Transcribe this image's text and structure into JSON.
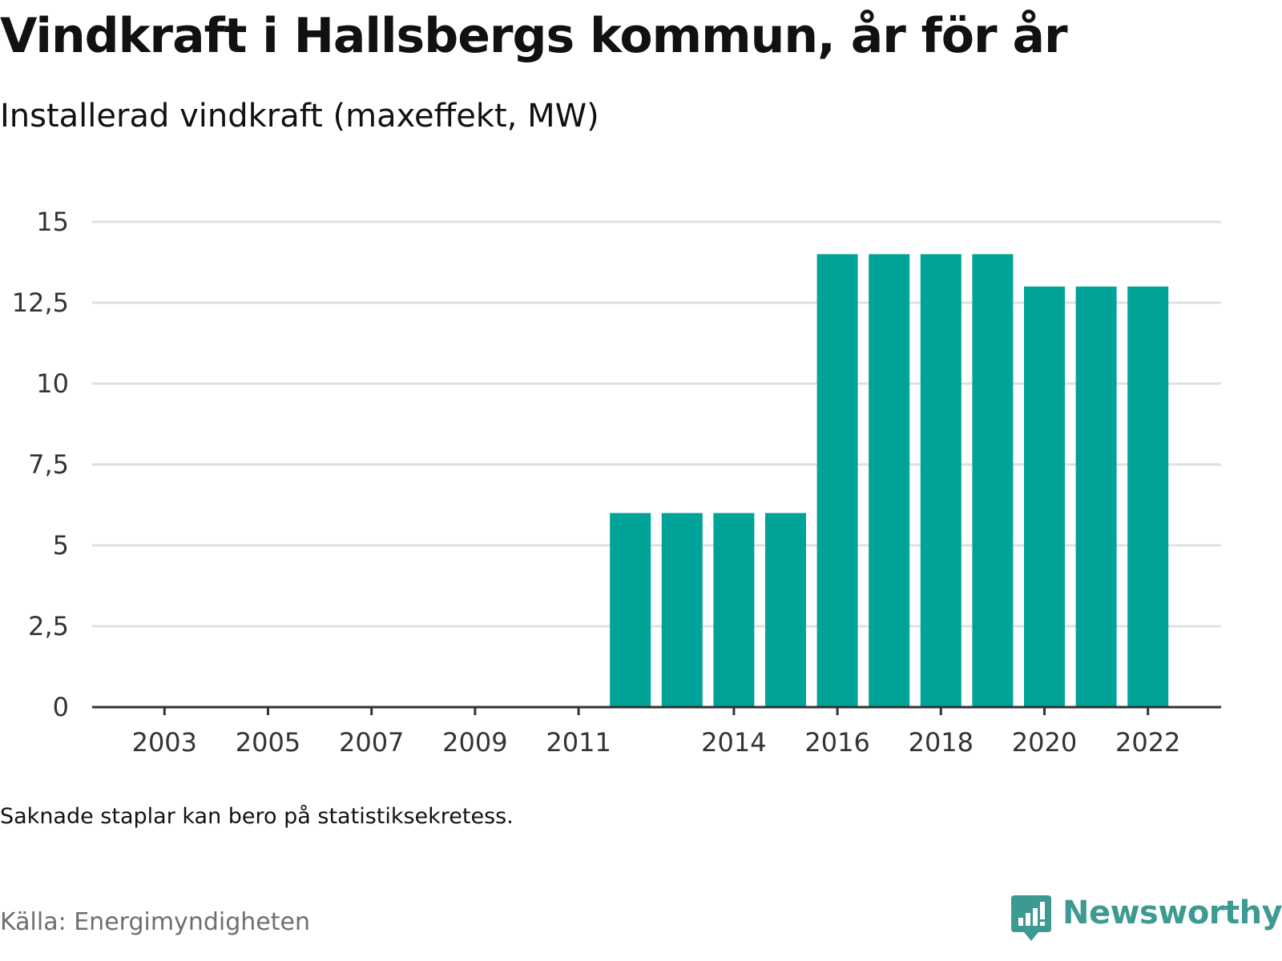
{
  "title": "Vindkraft i Hallsbergs kommun, år för år",
  "subtitle": "Installerad vindkraft (maxeffekt, MW)",
  "note": "Saknade staplar kan bero på statistiksekretess.",
  "source": "Källa: Energimyndigheten",
  "logo_text": "Newsworthy",
  "colors": {
    "bar": "#00a398",
    "grid": "#e0e0e0",
    "axis": "#333333",
    "logo": "#3d9a93"
  },
  "chart_data": {
    "type": "bar",
    "categories": [
      "2003",
      "2004",
      "2005",
      "2006",
      "2007",
      "2008",
      "2009",
      "2010",
      "2011",
      "2012",
      "2013",
      "2014",
      "2015",
      "2016",
      "2017",
      "2018",
      "2019",
      "2020",
      "2021",
      "2022"
    ],
    "values": [
      0,
      0,
      0,
      0,
      0,
      0,
      0,
      0,
      0,
      6,
      6,
      6,
      6,
      14,
      14,
      14,
      14,
      13,
      13,
      13
    ],
    "x_tick_labels": [
      "2003",
      "2005",
      "2007",
      "2009",
      "2011",
      "2014",
      "2016",
      "2018",
      "2020",
      "2022"
    ],
    "y_ticks": [
      0,
      2.5,
      5,
      7.5,
      10,
      12.5,
      15
    ],
    "y_tick_labels": [
      "0",
      "2,5",
      "5",
      "7,5",
      "10",
      "12,5",
      "15"
    ],
    "ylim": [
      0,
      15
    ],
    "grid": true,
    "xlabel": "",
    "ylabel": ""
  }
}
